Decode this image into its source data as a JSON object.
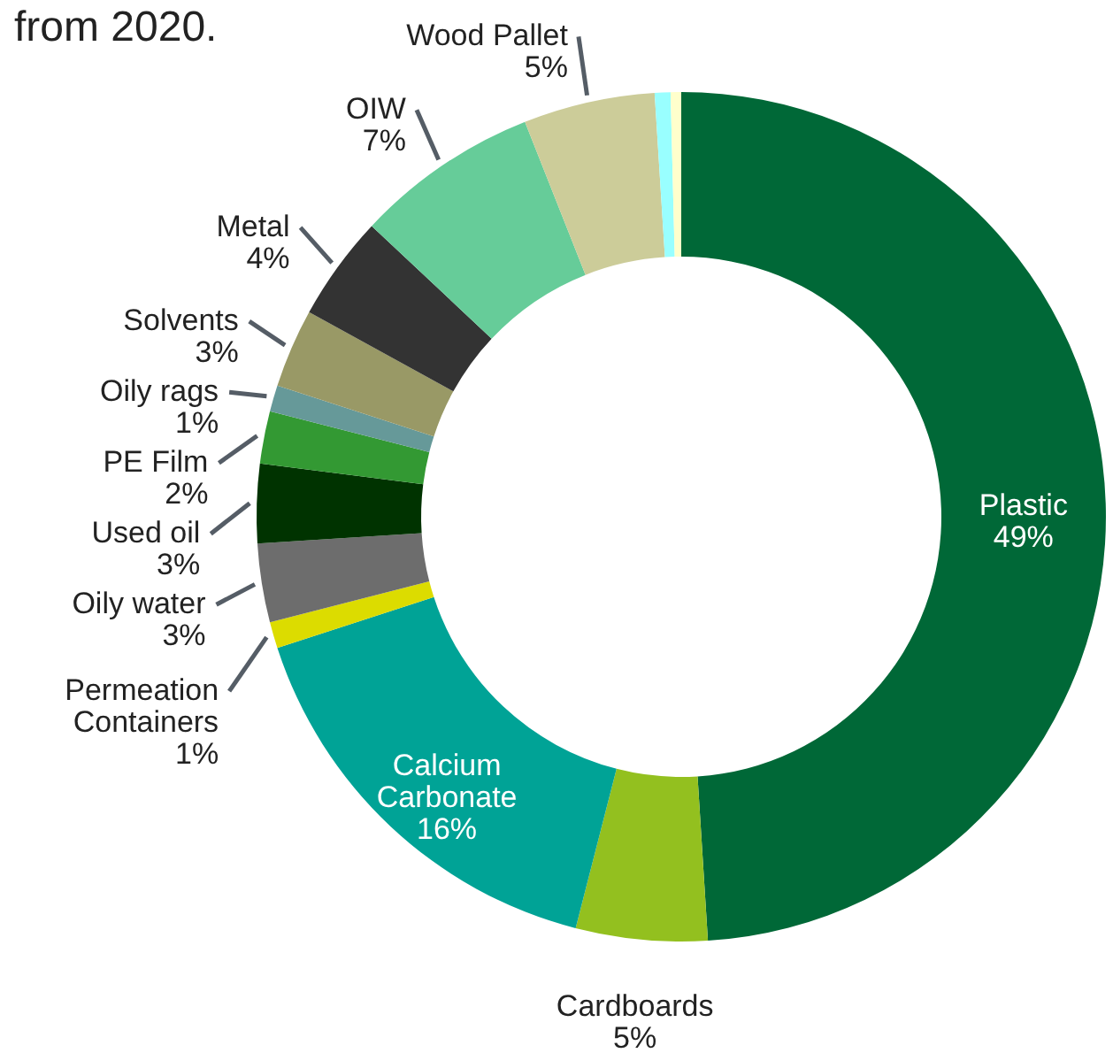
{
  "chart_data": {
    "type": "donut",
    "title": "from 2020.",
    "categories": [
      "Plastic",
      "Cardboards",
      "Calcium Carbonate",
      "Permeation Containers",
      "Oily water",
      "Used oil",
      "PE Film",
      "Oily rags",
      "Solvents",
      "Metal",
      "OIW",
      "Wood Pallet",
      null,
      null
    ],
    "values": [
      49,
      5,
      16,
      1,
      3,
      3,
      2,
      1,
      3,
      4,
      7,
      5,
      0.6,
      0.4
    ],
    "value_labels": [
      "49%",
      "5%",
      "16%",
      "1%",
      "3%",
      "3%",
      "2%",
      "1%",
      "3%",
      "4%",
      "7%",
      "5%",
      null,
      null
    ],
    "colors": [
      "#006837",
      "#93c01f",
      "#00a396",
      "#dcdc00",
      "#6d6d6d",
      "#003300",
      "#339933",
      "#669999",
      "#999966",
      "#333333",
      "#66cc99",
      "#cccc99",
      "#99ffff",
      "#ffffcc"
    ]
  }
}
